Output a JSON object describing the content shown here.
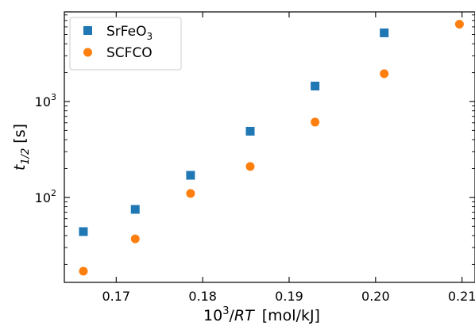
{
  "chart_data": {
    "type": "scatter",
    "title": "",
    "xlabel": {
      "base": "10",
      "sup": "3",
      "italic": "RT",
      "unit": "[mol/kJ]"
    },
    "ylabel": {
      "italic": "t",
      "sub": "1/2",
      "unit": "[s]"
    },
    "x_scale": "linear",
    "y_scale": "log",
    "xlim": [
      0.164,
      0.2115
    ],
    "ylim": [
      13,
      8600
    ],
    "x_ticks": [
      0.17,
      0.18,
      0.19,
      0.2,
      0.21
    ],
    "x_tick_labels": [
      "0.17",
      "0.18",
      "0.19",
      "0.20",
      "0.21"
    ],
    "y_ticks": [
      100,
      1000
    ],
    "y_tick_labels": [
      {
        "base": "10",
        "exp": "2"
      },
      {
        "base": "10",
        "exp": "3"
      }
    ],
    "grid": false,
    "legend_position": "top-left",
    "series": [
      {
        "name": "SrFeO3",
        "label": {
          "text": "SrFeO",
          "sub": "3"
        },
        "marker": "square",
        "color": "#1f77b4",
        "x": [
          0.1662,
          0.1722,
          0.1786,
          0.1855,
          0.193,
          0.201
        ],
        "y": [
          44,
          75,
          170,
          490,
          1450,
          5200
        ]
      },
      {
        "name": "SCFCO",
        "label": {
          "text": "SCFCO",
          "sub": ""
        },
        "marker": "circle",
        "color": "#ff7f0e",
        "x": [
          0.1662,
          0.1722,
          0.1786,
          0.1855,
          0.193,
          0.201,
          0.2097
        ],
        "y": [
          17,
          37,
          110,
          210,
          610,
          1950,
          6400
        ]
      }
    ]
  }
}
